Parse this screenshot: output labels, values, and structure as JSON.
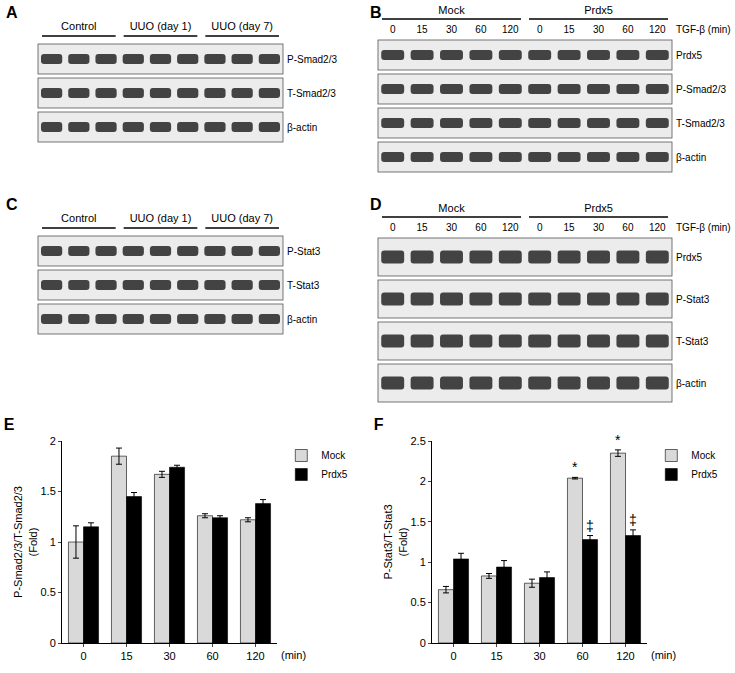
{
  "blots": [
    {
      "label": "A",
      "groups": [
        {
          "text": "Control",
          "lanes": 3
        },
        {
          "text": "UUO (day 1)",
          "lanes": 3
        },
        {
          "text": "UUO (day 7)",
          "lanes": 3
        }
      ],
      "rows": [
        "P-Smad2/3",
        "T-Smad2/3",
        "β-actin"
      ]
    },
    {
      "label": "B",
      "groups": [
        {
          "text": "Mock",
          "lanes": 5,
          "lane_labels": [
            "0",
            "15",
            "30",
            "60",
            "120"
          ]
        },
        {
          "text": "Prdx5",
          "lanes": 5,
          "lane_labels": [
            "0",
            "15",
            "30",
            "60",
            "120"
          ]
        }
      ],
      "lane_title": "TGF-β (min)",
      "rows": [
        "Prdx5",
        "P-Smad2/3",
        "T-Smad2/3",
        "β-actin"
      ]
    },
    {
      "label": "C",
      "groups": [
        {
          "text": "Control",
          "lanes": 3
        },
        {
          "text": "UUO (day 1)",
          "lanes": 3
        },
        {
          "text": "UUO (day 7)",
          "lanes": 3
        }
      ],
      "rows": [
        "P-Stat3",
        "T-Stat3",
        "β-actin"
      ]
    },
    {
      "label": "D",
      "groups": [
        {
          "text": "Mock",
          "lanes": 5,
          "lane_labels": [
            "0",
            "15",
            "30",
            "60",
            "120"
          ]
        },
        {
          "text": "Prdx5",
          "lanes": 5,
          "lane_labels": [
            "0",
            "15",
            "30",
            "60",
            "120"
          ]
        }
      ],
      "lane_title": "TGF-β (min)",
      "rows": [
        "Prdx5",
        "P-Stat3",
        "T-Stat3",
        "β-actin"
      ]
    }
  ],
  "chart_data": [
    {
      "type": "bar",
      "title": "E",
      "y_label": "P-Smad2/3/T-Smad2/3\n(Fold)",
      "x_label": "(min)",
      "categories": [
        "0",
        "15",
        "30",
        "60",
        "120"
      ],
      "series": [
        {
          "name": "Mock",
          "color": "#d9d9d9",
          "values": [
            1.0,
            1.85,
            1.67,
            1.26,
            1.22
          ],
          "errors": [
            0.16,
            0.08,
            0.03,
            0.02,
            0.02
          ]
        },
        {
          "name": "Prdx5",
          "color": "#000000",
          "values": [
            1.15,
            1.45,
            1.74,
            1.24,
            1.38
          ],
          "errors": [
            0.04,
            0.04,
            0.02,
            0.02,
            0.04
          ]
        }
      ],
      "ylim": [
        0,
        2
      ],
      "yticks": [
        0,
        0.5,
        1,
        1.5,
        2
      ],
      "grid": false,
      "legend": "right"
    },
    {
      "type": "bar",
      "title": "F",
      "y_label": "P-Stat3/T-Stat3\n(Fold)",
      "x_label": "(min)",
      "categories": [
        "0",
        "15",
        "30",
        "60",
        "120"
      ],
      "series": [
        {
          "name": "Mock",
          "color": "#d9d9d9",
          "values": [
            0.66,
            0.83,
            0.74,
            2.04,
            2.35
          ],
          "errors": [
            0.04,
            0.03,
            0.05,
            0.01,
            0.04
          ]
        },
        {
          "name": "Prdx5",
          "color": "#000000",
          "values": [
            1.04,
            0.94,
            0.81,
            1.28,
            1.33
          ],
          "errors": [
            0.07,
            0.08,
            0.07,
            0.05,
            0.07
          ]
        }
      ],
      "annotations": [
        {
          "text": "*",
          "category": "60",
          "series": "Mock"
        },
        {
          "text": "*",
          "category": "120",
          "series": "Mock"
        },
        {
          "text": "‡",
          "category": "60",
          "series": "Prdx5"
        },
        {
          "text": "‡",
          "category": "120",
          "series": "Prdx5"
        }
      ],
      "ylim": [
        0,
        2.5
      ],
      "yticks": [
        0,
        0.5,
        1,
        1.5,
        2,
        2.5
      ],
      "grid": false,
      "legend": "right"
    }
  ]
}
